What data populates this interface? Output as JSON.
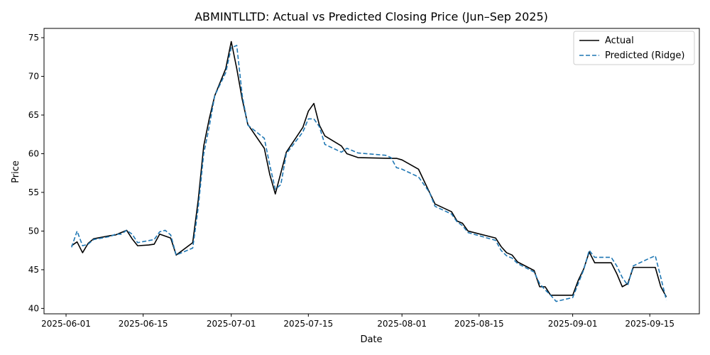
{
  "chart_data": {
    "type": "line",
    "title": "ABMINTLLTD: Actual vs Predicted Closing Price (Jun–Sep 2025)",
    "xlabel": "Date",
    "ylabel": "Price",
    "xlim": [
      "2025-05-28",
      "2025-09-24"
    ],
    "ylim": [
      39.3,
      76.2
    ],
    "x_ticks": [
      "2025-06-01",
      "2025-06-15",
      "2025-07-01",
      "2025-07-15",
      "2025-08-01",
      "2025-08-15",
      "2025-09-01",
      "2025-09-15"
    ],
    "y_ticks": [
      40,
      45,
      50,
      55,
      60,
      65,
      70,
      75
    ],
    "grid": false,
    "legend_position": "top-right",
    "series": [
      {
        "name": "Actual",
        "color": "#000000",
        "dash": "solid",
        "points": [
          [
            "2025-06-02",
            48.1
          ],
          [
            "2025-06-03",
            48.6
          ],
          [
            "2025-06-04",
            47.2
          ],
          [
            "2025-06-05",
            48.4
          ],
          [
            "2025-06-06",
            49.0
          ],
          [
            "2025-06-09",
            49.4
          ],
          [
            "2025-06-10",
            49.5
          ],
          [
            "2025-06-11",
            49.8
          ],
          [
            "2025-06-12",
            50.1
          ],
          [
            "2025-06-13",
            49.0
          ],
          [
            "2025-06-14",
            48.1
          ],
          [
            "2025-06-16",
            48.2
          ],
          [
            "2025-06-17",
            48.3
          ],
          [
            "2025-06-18",
            49.6
          ],
          [
            "2025-06-20",
            49.1
          ],
          [
            "2025-06-21",
            46.9
          ],
          [
            "2025-06-24",
            48.5
          ],
          [
            "2025-06-25",
            54.0
          ],
          [
            "2025-06-26",
            61.0
          ],
          [
            "2025-06-27",
            64.5
          ],
          [
            "2025-06-28",
            67.5
          ],
          [
            "2025-06-30",
            71.0
          ],
          [
            "2025-07-01",
            74.5
          ],
          [
            "2025-07-02",
            71.0
          ],
          [
            "2025-07-03",
            67.0
          ],
          [
            "2025-07-04",
            63.8
          ],
          [
            "2025-07-07",
            60.7
          ],
          [
            "2025-07-08",
            57.3
          ],
          [
            "2025-07-09",
            54.8
          ],
          [
            "2025-07-11",
            60.2
          ],
          [
            "2025-07-14",
            63.4
          ],
          [
            "2025-07-15",
            65.5
          ],
          [
            "2025-07-16",
            66.5
          ],
          [
            "2025-07-17",
            63.7
          ],
          [
            "2025-07-18",
            62.3
          ],
          [
            "2025-07-21",
            61.0
          ],
          [
            "2025-07-22",
            60.0
          ],
          [
            "2025-07-24",
            59.5
          ],
          [
            "2025-07-30",
            59.4
          ],
          [
            "2025-07-31",
            59.4
          ],
          [
            "2025-08-01",
            59.2
          ],
          [
            "2025-08-04",
            58.0
          ],
          [
            "2025-08-05",
            56.5
          ],
          [
            "2025-08-06",
            55.0
          ],
          [
            "2025-08-07",
            53.5
          ],
          [
            "2025-08-10",
            52.5
          ],
          [
            "2025-08-11",
            51.3
          ],
          [
            "2025-08-12",
            51.0
          ],
          [
            "2025-08-13",
            50.0
          ],
          [
            "2025-08-18",
            49.1
          ],
          [
            "2025-08-19",
            48.0
          ],
          [
            "2025-08-20",
            47.2
          ],
          [
            "2025-08-21",
            46.9
          ],
          [
            "2025-08-22",
            46.0
          ],
          [
            "2025-08-25",
            44.9
          ],
          [
            "2025-08-26",
            42.8
          ],
          [
            "2025-08-27",
            42.8
          ],
          [
            "2025-08-28",
            41.7
          ],
          [
            "2025-09-01",
            41.7
          ],
          [
            "2025-09-02",
            43.6
          ],
          [
            "2025-09-03",
            45.1
          ],
          [
            "2025-09-04",
            47.3
          ],
          [
            "2025-09-05",
            45.9
          ],
          [
            "2025-09-08",
            45.9
          ],
          [
            "2025-09-09",
            44.5
          ],
          [
            "2025-09-10",
            42.8
          ],
          [
            "2025-09-11",
            43.2
          ],
          [
            "2025-09-12",
            45.3
          ],
          [
            "2025-09-16",
            45.3
          ],
          [
            "2025-09-17",
            42.8
          ],
          [
            "2025-09-18",
            41.5
          ]
        ]
      },
      {
        "name": "Predicted (Ridge)",
        "color": "#1f77b4",
        "dash": "dashed",
        "points": [
          [
            "2025-06-02",
            47.9
          ],
          [
            "2025-06-03",
            50.0
          ],
          [
            "2025-06-04",
            48.1
          ],
          [
            "2025-06-05",
            48.3
          ],
          [
            "2025-06-06",
            48.9
          ],
          [
            "2025-06-09",
            49.3
          ],
          [
            "2025-06-10",
            49.6
          ],
          [
            "2025-06-11",
            49.6
          ],
          [
            "2025-06-12",
            50.1
          ],
          [
            "2025-06-13",
            49.6
          ],
          [
            "2025-06-14",
            48.5
          ],
          [
            "2025-06-17",
            48.9
          ],
          [
            "2025-06-18",
            49.9
          ],
          [
            "2025-06-19",
            50.1
          ],
          [
            "2025-06-20",
            49.5
          ],
          [
            "2025-06-21",
            46.9
          ],
          [
            "2025-06-24",
            47.8
          ],
          [
            "2025-06-25",
            53.0
          ],
          [
            "2025-06-26",
            60.0
          ],
          [
            "2025-06-27",
            63.5
          ],
          [
            "2025-06-28",
            67.5
          ],
          [
            "2025-06-30",
            70.5
          ],
          [
            "2025-07-01",
            73.7
          ],
          [
            "2025-07-02",
            74.0
          ],
          [
            "2025-07-03",
            67.5
          ],
          [
            "2025-07-04",
            63.7
          ],
          [
            "2025-07-07",
            62.0
          ],
          [
            "2025-07-08",
            58.5
          ],
          [
            "2025-07-09",
            55.4
          ],
          [
            "2025-07-10",
            56.0
          ],
          [
            "2025-07-11",
            60.0
          ],
          [
            "2025-07-14",
            62.8
          ],
          [
            "2025-07-15",
            64.5
          ],
          [
            "2025-07-16",
            64.5
          ],
          [
            "2025-07-17",
            63.5
          ],
          [
            "2025-07-18",
            61.2
          ],
          [
            "2025-07-21",
            60.2
          ],
          [
            "2025-07-22",
            60.7
          ],
          [
            "2025-07-24",
            60.1
          ],
          [
            "2025-07-29",
            59.8
          ],
          [
            "2025-07-30",
            59.5
          ],
          [
            "2025-07-31",
            58.2
          ],
          [
            "2025-08-01",
            58.0
          ],
          [
            "2025-08-04",
            57.0
          ],
          [
            "2025-08-05",
            56.0
          ],
          [
            "2025-08-06",
            55.0
          ],
          [
            "2025-08-07",
            53.2
          ],
          [
            "2025-08-10",
            52.2
          ],
          [
            "2025-08-11",
            51.2
          ],
          [
            "2025-08-12",
            50.7
          ],
          [
            "2025-08-13",
            49.8
          ],
          [
            "2025-08-18",
            48.8
          ],
          [
            "2025-08-19",
            47.5
          ],
          [
            "2025-08-20",
            46.8
          ],
          [
            "2025-08-21",
            46.5
          ],
          [
            "2025-08-22",
            45.8
          ],
          [
            "2025-08-25",
            44.7
          ],
          [
            "2025-08-26",
            43.2
          ],
          [
            "2025-08-27",
            42.4
          ],
          [
            "2025-08-28",
            41.7
          ],
          [
            "2025-08-29",
            40.9
          ],
          [
            "2025-09-01",
            41.4
          ],
          [
            "2025-09-02",
            43.2
          ],
          [
            "2025-09-03",
            45.0
          ],
          [
            "2025-09-04",
            47.5
          ],
          [
            "2025-09-05",
            46.6
          ],
          [
            "2025-09-08",
            46.6
          ],
          [
            "2025-09-09",
            45.5
          ],
          [
            "2025-09-10",
            44.0
          ],
          [
            "2025-09-11",
            43.0
          ],
          [
            "2025-09-12",
            45.5
          ],
          [
            "2025-09-15",
            46.5
          ],
          [
            "2025-09-16",
            46.8
          ],
          [
            "2025-09-17",
            44.0
          ],
          [
            "2025-09-18",
            41.1
          ]
        ]
      }
    ]
  }
}
